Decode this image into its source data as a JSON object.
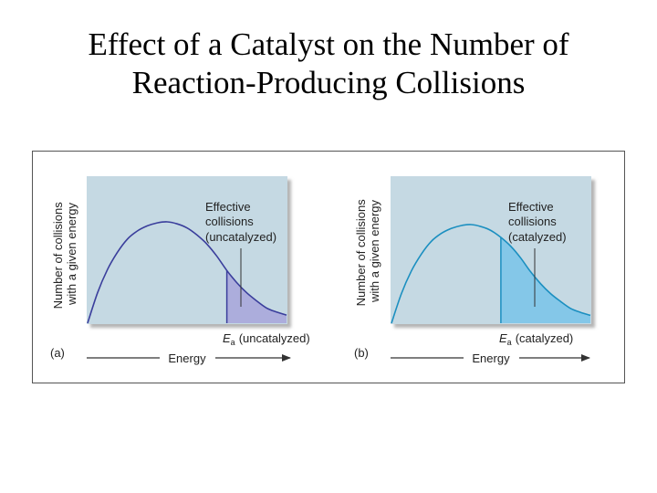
{
  "title": {
    "line1": "Effect of a Catalyst on the Number of",
    "line2": "Reaction-Producing Collisions"
  },
  "chart_data": [
    {
      "type": "area",
      "panel": "(a)",
      "ylabel_line1": "Number of collisions",
      "ylabel_line2": "with a given energy",
      "xlabel": "Energy",
      "annotation": [
        "Effective",
        "collisions",
        "(uncatalyzed)"
      ],
      "threshold_symbol": "E",
      "threshold_subscript": "a",
      "threshold_label": "(uncatalyzed)",
      "curve_color": "#3a3e9c",
      "fill_color": "#a9a7da",
      "x": [
        0,
        1,
        2,
        3,
        4,
        5,
        6,
        7,
        8,
        9,
        10,
        11,
        12,
        13,
        14,
        15,
        16,
        17,
        18,
        19,
        20
      ],
      "y": [
        0,
        30,
        53,
        70,
        83,
        91,
        96,
        99,
        100,
        98,
        94,
        87,
        78,
        66,
        52,
        40,
        30,
        22,
        15,
        11,
        8
      ],
      "threshold_x": 14
    },
    {
      "type": "area",
      "panel": "(b)",
      "ylabel_line1": "Number of collisions",
      "ylabel_line2": "with a given energy",
      "xlabel": "Energy",
      "annotation": [
        "Effective",
        "collisions",
        "(catalyzed)"
      ],
      "threshold_symbol": "E",
      "threshold_subscript": "a",
      "threshold_label": "(catalyzed)",
      "curve_color": "#1b8fc0",
      "fill_color": "#7cc4e8",
      "x": [
        0,
        1,
        2,
        3,
        4,
        5,
        6,
        7,
        8,
        9,
        10,
        11,
        12,
        13,
        14,
        15,
        16,
        17,
        18,
        19,
        20
      ],
      "y": [
        0,
        30,
        53,
        70,
        83,
        91,
        96,
        99,
        100,
        98,
        94,
        87,
        78,
        66,
        52,
        40,
        30,
        22,
        15,
        11,
        8
      ],
      "threshold_x": 11
    }
  ],
  "colors": {
    "panel_bg": "#c5d9e3",
    "arrow": "#333333"
  }
}
